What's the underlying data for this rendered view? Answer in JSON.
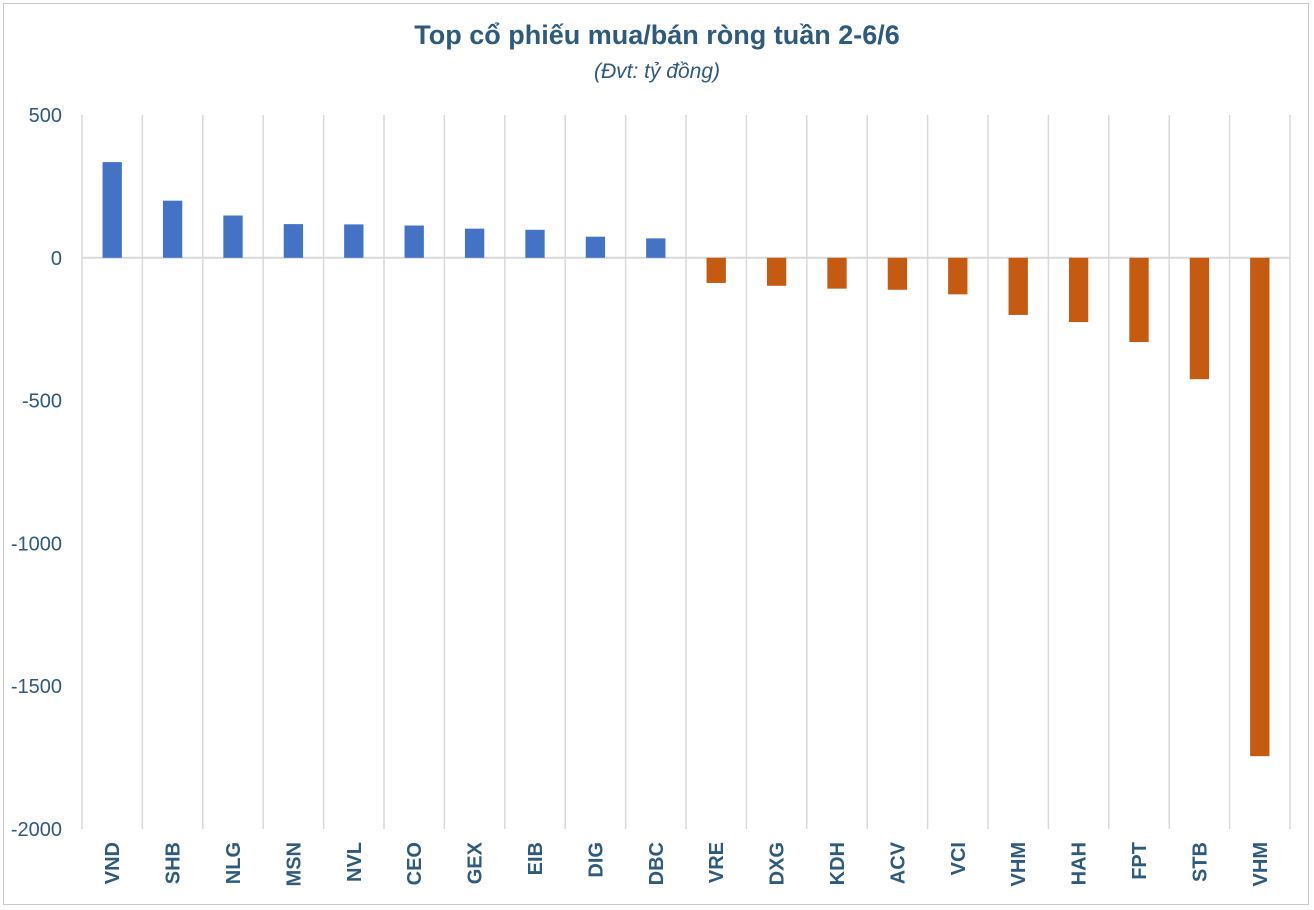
{
  "chart_data": {
    "type": "bar",
    "title": "Top cổ phiếu mua/bán ròng tuần 2-6/6",
    "subtitle": "(Đvt: tỷ đồng)",
    "categories": [
      "VND",
      "SHB",
      "NLG",
      "MSN",
      "NVL",
      "CEO",
      "GEX",
      "EIB",
      "DIG",
      "DBC",
      "VRE",
      "DXG",
      "KDH",
      "ACV",
      "VCI",
      "VHM",
      "HAH",
      "FPT",
      "STB",
      "VHM"
    ],
    "values": [
      335,
      200,
      148,
      118,
      117,
      113,
      102,
      98,
      74,
      68,
      -88,
      -98,
      -108,
      -112,
      -128,
      -200,
      -225,
      -295,
      -425,
      -1745
    ],
    "ylim": [
      -2000,
      500
    ],
    "yticks": [
      500,
      0,
      -500,
      -1000,
      -1500,
      -2000
    ],
    "colors": {
      "positive": "#4472c4",
      "negative": "#c55a11",
      "grid": "#d9d9d9",
      "text": "#2e5a7c"
    },
    "grid": true,
    "legend": "none"
  }
}
